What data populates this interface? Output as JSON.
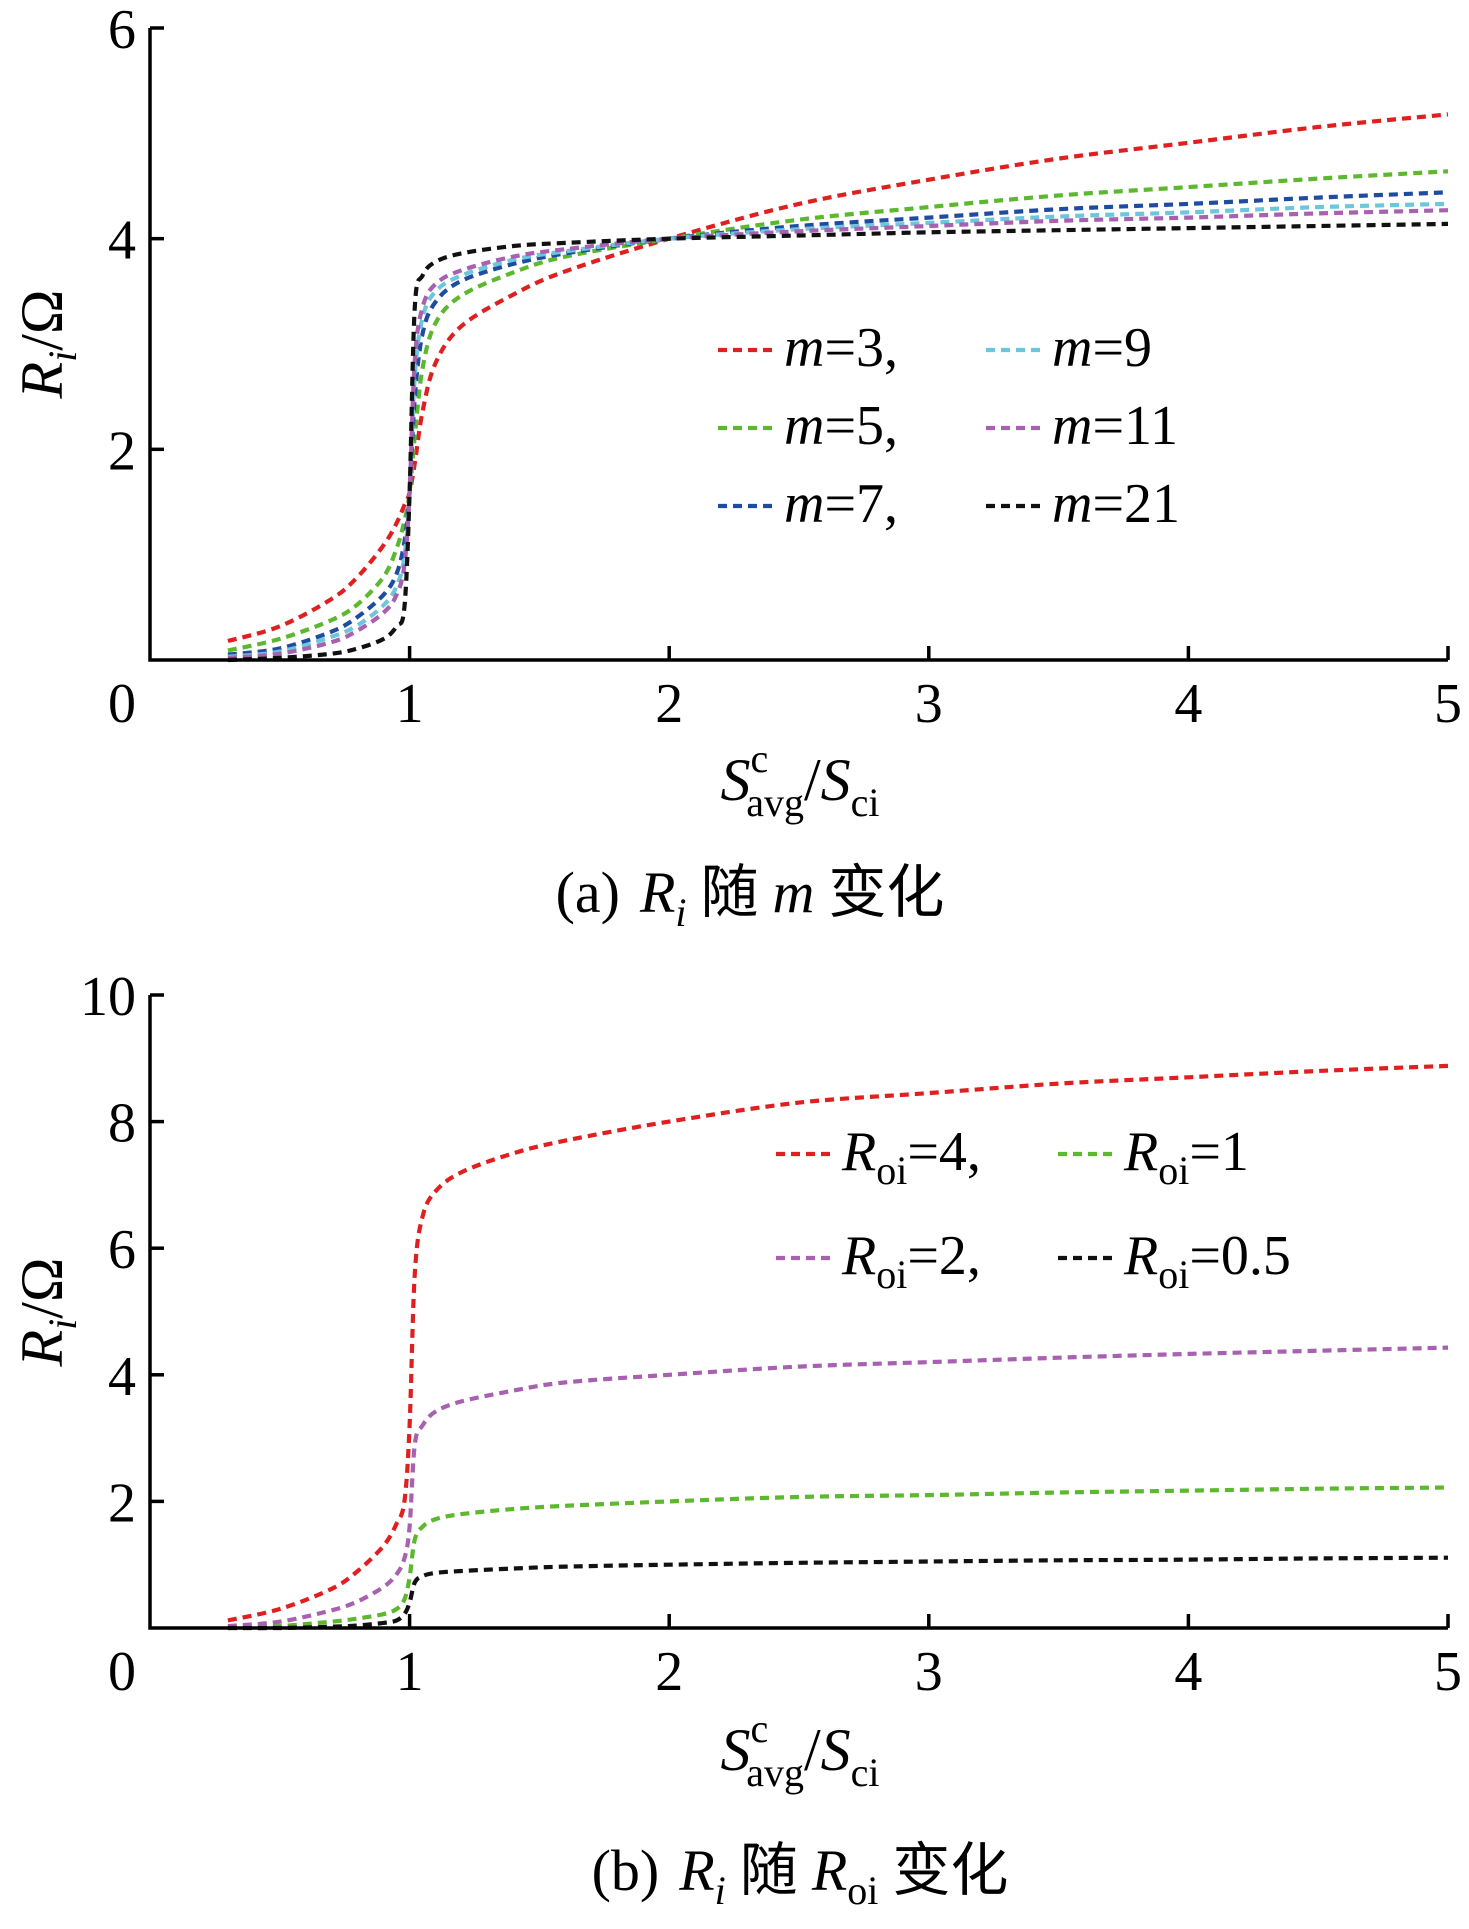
{
  "chart_data": [
    {
      "type": "line",
      "panel": "a",
      "caption": "(a)  Ri 随 m 变化",
      "caption_parts": {
        "prefix": "(a)",
        "sym": "R",
        "sub": "i",
        "mid": "随",
        "var": "m",
        "suffix": "变化"
      },
      "xlabel": {
        "sym": "S",
        "sup": "c",
        "sub": "avg",
        "slash": "/",
        "sym2": "S",
        "sub2": "ci"
      },
      "ylabel": {
        "sym": "R",
        "sub": "i",
        "unit": "/Ω"
      },
      "xlim": [
        0,
        5
      ],
      "ylim": [
        0,
        6
      ],
      "xticks": [
        {
          "value": 0,
          "label": "0"
        },
        {
          "value": 1,
          "label": "1"
        },
        {
          "value": 2,
          "label": "2"
        },
        {
          "value": 3,
          "label": "3"
        },
        {
          "value": 4,
          "label": "4"
        },
        {
          "value": 5,
          "label": "5"
        }
      ],
      "yticks": [
        {
          "value": 2,
          "label": "2"
        },
        {
          "value": 4,
          "label": "4"
        },
        {
          "value": 6,
          "label": "6"
        }
      ],
      "grid": false,
      "legend_position": "center-right",
      "x": [
        0.3,
        0.5,
        0.7,
        0.8,
        0.9,
        0.95,
        0.98,
        1.0,
        1.02,
        1.05,
        1.1,
        1.2,
        1.4,
        1.6,
        2.0,
        2.5,
        3.0,
        3.5,
        4.0,
        4.5,
        5.0
      ],
      "series": [
        {
          "name": "m=3,",
          "name_var": "m",
          "name_val": "=3,",
          "color": "#e02020",
          "values": [
            0.18,
            0.32,
            0.58,
            0.79,
            1.09,
            1.3,
            1.47,
            1.59,
            1.87,
            2.36,
            2.82,
            3.17,
            3.47,
            3.69,
            4.0,
            4.33,
            4.56,
            4.76,
            4.91,
            5.06,
            5.18
          ]
        },
        {
          "name": "m=5,",
          "name_var": "m",
          "name_val": "=5,",
          "color": "#5cb82e",
          "values": [
            0.09,
            0.2,
            0.38,
            0.53,
            0.79,
            1.06,
            1.32,
            1.59,
            2.13,
            2.77,
            3.2,
            3.46,
            3.68,
            3.83,
            4.0,
            4.18,
            4.3,
            4.41,
            4.49,
            4.57,
            4.64
          ]
        },
        {
          "name": "m=7,",
          "name_var": "m",
          "name_val": "=7,",
          "color": "#1e4da0",
          "values": [
            0.05,
            0.11,
            0.27,
            0.41,
            0.62,
            0.82,
            1.12,
            1.59,
            2.5,
            3.1,
            3.4,
            3.6,
            3.76,
            3.86,
            4.0,
            4.12,
            4.2,
            4.28,
            4.33,
            4.39,
            4.44
          ]
        },
        {
          "name": "m=9",
          "name_var": "m",
          "name_val": "=9",
          "color": "#6cc6dc",
          "values": [
            0.03,
            0.08,
            0.22,
            0.33,
            0.52,
            0.7,
            0.98,
            1.59,
            2.7,
            3.25,
            3.5,
            3.65,
            3.8,
            3.88,
            4.0,
            4.09,
            4.15,
            4.21,
            4.25,
            4.3,
            4.33
          ]
        },
        {
          "name": "m=11",
          "name_var": "m",
          "name_val": "=11",
          "color": "#a860b0",
          "values": [
            0.02,
            0.06,
            0.17,
            0.28,
            0.45,
            0.62,
            0.9,
            1.59,
            2.85,
            3.35,
            3.57,
            3.7,
            3.83,
            3.9,
            4.0,
            4.07,
            4.12,
            4.17,
            4.2,
            4.24,
            4.27
          ]
        },
        {
          "name": "m=21",
          "name_var": "m",
          "name_val": "=21",
          "color": "#111111",
          "values": [
            0.0,
            0.02,
            0.06,
            0.11,
            0.2,
            0.32,
            0.5,
            1.59,
            3.35,
            3.65,
            3.78,
            3.86,
            3.93,
            3.96,
            4.0,
            4.03,
            4.06,
            4.08,
            4.1,
            4.12,
            4.14
          ]
        }
      ]
    },
    {
      "type": "line",
      "panel": "b",
      "caption": "(b)  Ri 随 Roi 变化",
      "caption_parts": {
        "prefix": "(b)",
        "sym": "R",
        "sub": "i",
        "mid": "随",
        "sym2": "R",
        "sub2": "oi",
        "suffix": "变化"
      },
      "xlabel": {
        "sym": "S",
        "sup": "c",
        "sub": "avg",
        "slash": "/",
        "sym2": "S",
        "sub2": "ci"
      },
      "ylabel": {
        "sym": "R",
        "sub": "i",
        "unit": "/Ω"
      },
      "xlim": [
        0,
        5
      ],
      "ylim": [
        0,
        10
      ],
      "xticks": [
        {
          "value": 0,
          "label": "0"
        },
        {
          "value": 1,
          "label": "1"
        },
        {
          "value": 2,
          "label": "2"
        },
        {
          "value": 3,
          "label": "3"
        },
        {
          "value": 4,
          "label": "4"
        },
        {
          "value": 5,
          "label": "5"
        }
      ],
      "yticks": [
        {
          "value": 2,
          "label": "2"
        },
        {
          "value": 4,
          "label": "4"
        },
        {
          "value": 6,
          "label": "6"
        },
        {
          "value": 8,
          "label": "8"
        },
        {
          "value": 10,
          "label": "10"
        }
      ],
      "grid": false,
      "legend_position": "upper-right",
      "x": [
        0.3,
        0.5,
        0.7,
        0.8,
        0.9,
        0.95,
        0.98,
        1.0,
        1.02,
        1.05,
        1.1,
        1.2,
        1.4,
        1.6,
        2.0,
        2.5,
        3.0,
        3.5,
        4.0,
        4.5,
        5.0
      ],
      "series": [
        {
          "name": "Roi=4,",
          "name_sym": "R",
          "name_sub": "oi",
          "name_val": "=4,",
          "color": "#e02020",
          "values": [
            0.12,
            0.3,
            0.62,
            0.9,
            1.3,
            1.65,
            2.0,
            3.2,
            5.6,
            6.5,
            6.9,
            7.2,
            7.5,
            7.7,
            8.0,
            8.3,
            8.45,
            8.6,
            8.7,
            8.8,
            8.88
          ]
        },
        {
          "name": "Roi=1",
          "name_sym": "R",
          "name_sub": "oi",
          "name_val": "=1",
          "color": "#5cb82e",
          "values": [
            0.0,
            0.03,
            0.1,
            0.15,
            0.22,
            0.3,
            0.45,
            0.8,
            1.4,
            1.6,
            1.72,
            1.8,
            1.88,
            1.93,
            2.0,
            2.07,
            2.1,
            2.14,
            2.17,
            2.2,
            2.22
          ]
        },
        {
          "name": "Roi=2,",
          "name_sym": "R",
          "name_sub": "oi",
          "name_val": "=2,",
          "color": "#a860b0",
          "values": [
            0.03,
            0.1,
            0.28,
            0.42,
            0.65,
            0.85,
            1.1,
            1.6,
            2.9,
            3.2,
            3.42,
            3.58,
            3.75,
            3.88,
            4.0,
            4.13,
            4.2,
            4.27,
            4.33,
            4.38,
            4.43
          ]
        },
        {
          "name": "Roi=0.5",
          "name_sym": "R",
          "name_sub": "oi",
          "name_val": "=0.5",
          "color": "#111111",
          "values": [
            0.0,
            0.0,
            0.02,
            0.04,
            0.08,
            0.12,
            0.22,
            0.4,
            0.72,
            0.82,
            0.87,
            0.9,
            0.94,
            0.97,
            1.0,
            1.03,
            1.05,
            1.07,
            1.08,
            1.1,
            1.11
          ]
        }
      ]
    }
  ]
}
